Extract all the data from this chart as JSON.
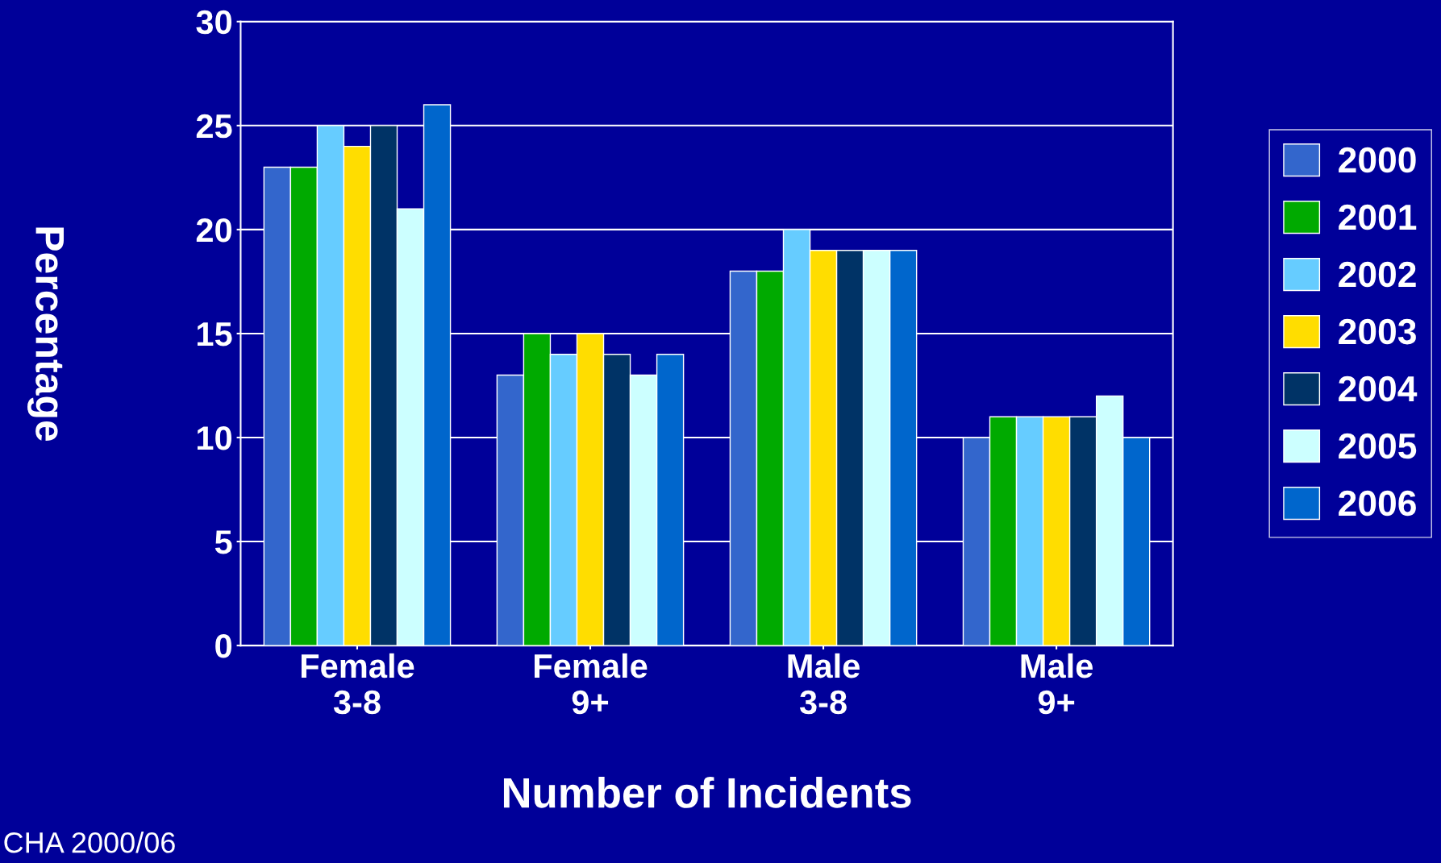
{
  "chart_data": {
    "type": "bar",
    "xlabel": "Number of Incidents",
    "ylabel": "Percentage",
    "categories": [
      "Female\n3-8",
      "Female\n9+",
      "Male\n3-8",
      "Male\n9+"
    ],
    "series": [
      {
        "name": "2000",
        "color": "#3366cc",
        "values": [
          23,
          13,
          18,
          10
        ]
      },
      {
        "name": "2001",
        "color": "#00aa00",
        "values": [
          23,
          15,
          18,
          11
        ]
      },
      {
        "name": "2002",
        "color": "#66ccff",
        "values": [
          25,
          14,
          20,
          11
        ]
      },
      {
        "name": "2003",
        "color": "#ffdd00",
        "values": [
          24,
          15,
          19,
          11
        ]
      },
      {
        "name": "2004",
        "color": "#003366",
        "values": [
          25,
          14,
          19,
          11
        ]
      },
      {
        "name": "2005",
        "color": "#ccffff",
        "values": [
          21,
          13,
          19,
          12
        ]
      },
      {
        "name": "2006",
        "color": "#0066cc",
        "values": [
          26,
          14,
          19,
          10
        ]
      }
    ],
    "ylim": [
      0,
      30
    ],
    "yticks": [
      0,
      5,
      10,
      15,
      20,
      25,
      30
    ],
    "grid": "y",
    "legend": "right",
    "annotations": [
      "CHA 2000/06"
    ]
  }
}
